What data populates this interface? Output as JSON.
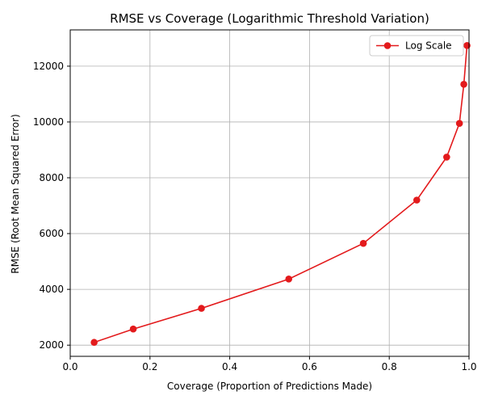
{
  "chart_data": {
    "type": "line",
    "title": "RMSE vs Coverage (Logarithmic Threshold Variation)",
    "xlabel": "Coverage (Proportion of Predictions Made)",
    "ylabel": "RMSE (Root Mean Squared Error)",
    "xlim": [
      0.0,
      1.0
    ],
    "ylim": [
      1600,
      13300
    ],
    "xticks": [
      "0.0",
      "0.2",
      "0.4",
      "0.6",
      "0.8",
      "1.0"
    ],
    "xtick_values": [
      0.0,
      0.2,
      0.4,
      0.6,
      0.8,
      1.0
    ],
    "yticks": [
      "2000",
      "4000",
      "6000",
      "8000",
      "10000",
      "12000"
    ],
    "ytick_values": [
      2000,
      4000,
      6000,
      8000,
      10000,
      12000
    ],
    "grid": true,
    "legend_position": "top-right",
    "series": [
      {
        "name": "Log Scale",
        "color": "#e31a1c",
        "marker": "circle",
        "x": [
          0.06,
          0.158,
          0.329,
          0.548,
          0.735,
          0.869,
          0.944,
          0.976,
          0.987,
          0.995
        ],
        "y": [
          2100,
          2580,
          3320,
          4370,
          5650,
          7200,
          8740,
          9950,
          11350,
          12740
        ]
      }
    ]
  }
}
